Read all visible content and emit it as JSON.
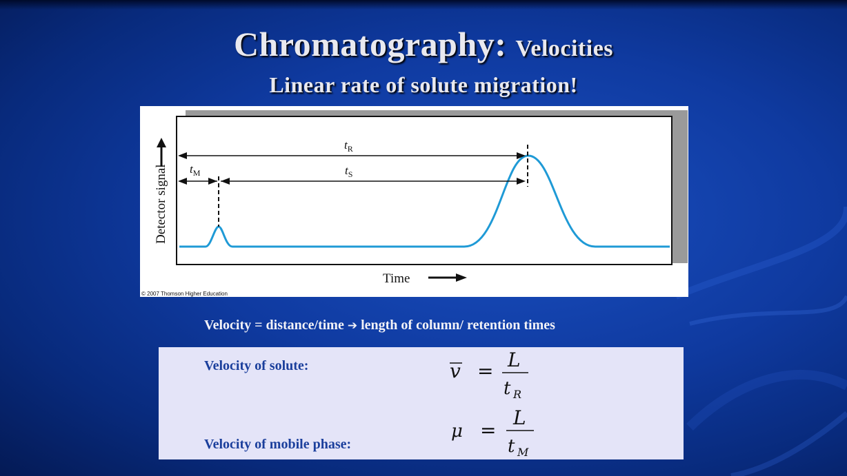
{
  "slide": {
    "title_main": "Chromatography:",
    "title_sub": "Velocities",
    "subtitle": "Linear rate of solute migration!"
  },
  "figure": {
    "y_axis_label": "Detector signal",
    "x_axis_label": "Time",
    "label_tR": "t",
    "label_tR_sub": "R",
    "label_tM": "t",
    "label_tM_sub": "M",
    "label_tS": "t",
    "label_tS_sub": "S",
    "copyright": "© 2007 Thomson Higher Education",
    "curve_color": "#1f9ad6"
  },
  "velocity": {
    "text_before": "Velocity = distance/time ",
    "arrow_icon": "arrow-right-icon",
    "text_after": " length of column/ retention times"
  },
  "formulas": {
    "solute_label": "Velocity of solute:",
    "mobile_label": "Velocity of mobile phase:",
    "solute_lhs": "v",
    "mobile_lhs": "μ",
    "eq": "=",
    "numerator": "L",
    "denominator_base": "t",
    "solute_sub": "R",
    "mobile_sub": "M"
  }
}
